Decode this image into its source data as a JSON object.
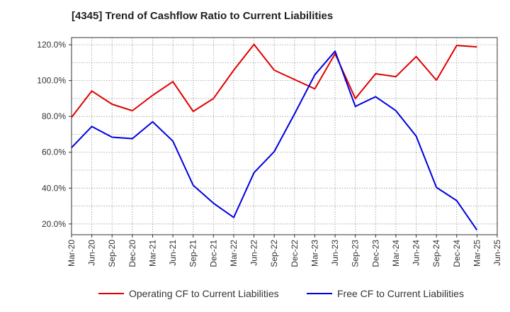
{
  "chart_data": {
    "type": "line",
    "title": "[4345]  Trend of Cashflow Ratio to Current Liabilities",
    "xlabel": "",
    "ylabel": "",
    "x_ticks": [
      "Mar-20",
      "Jun-20",
      "Sep-20",
      "Dec-20",
      "Mar-21",
      "Jun-21",
      "Sep-21",
      "Dec-21",
      "Mar-22",
      "Jun-22",
      "Sep-22",
      "Dec-22",
      "Mar-23",
      "Jun-23",
      "Sep-23",
      "Dec-23",
      "Mar-24",
      "Jun-24",
      "Sep-24",
      "Dec-24",
      "Mar-25",
      "Jun-25"
    ],
    "y_ticks": [
      "20.0%",
      "40.0%",
      "60.0%",
      "80.0%",
      "100.0%",
      "120.0%"
    ],
    "ylim": [
      14,
      124
    ],
    "grid": true,
    "legend_position": "bottom",
    "x": [
      "Mar-20",
      "Jun-20",
      "Sep-20",
      "Dec-20",
      "Mar-21",
      "Jun-21",
      "Sep-21",
      "Dec-21",
      "Mar-22",
      "Jun-22",
      "Sep-22",
      "Dec-22",
      "Mar-23",
      "Jun-23",
      "Sep-23",
      "Dec-23",
      "Mar-24",
      "Jun-24",
      "Sep-24",
      "Dec-24",
      "Mar-25"
    ],
    "series": [
      {
        "name": "Operating CF to Current Liabilities",
        "color": "#e00000",
        "values": [
          79.5,
          94.2,
          86.8,
          83.2,
          91.8,
          99.4,
          82.8,
          90.0,
          105.8,
          120.2,
          105.8,
          100.6,
          95.4,
          115.0,
          90.0,
          103.8,
          102.2,
          113.4,
          100.2,
          119.6,
          118.8
        ]
      },
      {
        "name": "Free CF to Current Liabilities",
        "color": "#0000e0",
        "values": [
          62.6,
          74.4,
          68.4,
          67.6,
          77.0,
          66.2,
          41.6,
          31.6,
          23.6,
          48.6,
          60.4,
          81.4,
          103.2,
          116.4,
          85.6,
          91.0,
          83.2,
          69.0,
          40.4,
          33.0,
          16.6
        ]
      }
    ]
  }
}
